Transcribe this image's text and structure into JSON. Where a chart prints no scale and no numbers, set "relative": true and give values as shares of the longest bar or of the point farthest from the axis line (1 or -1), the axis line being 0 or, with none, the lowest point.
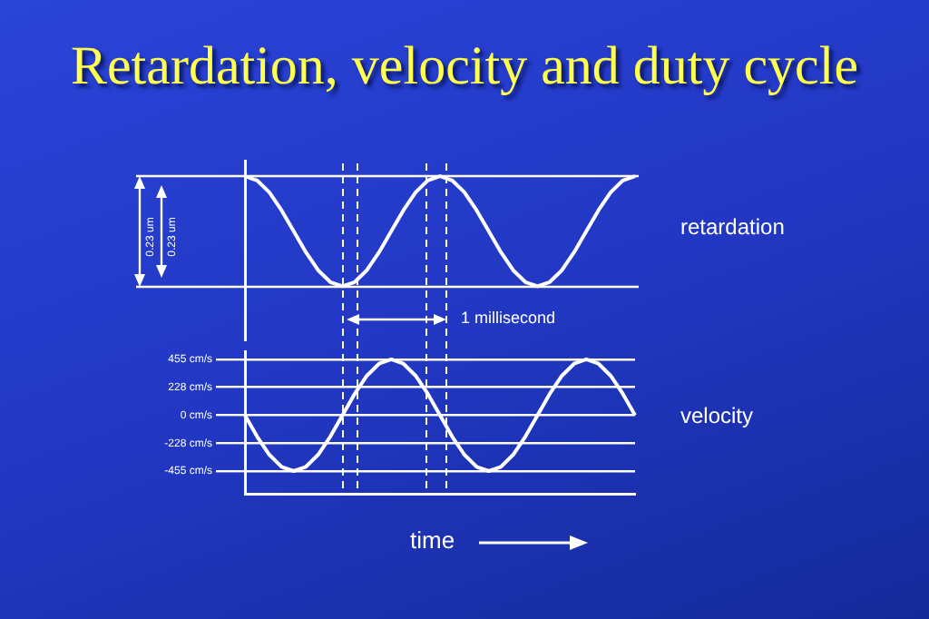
{
  "chart_data": [
    {
      "type": "line",
      "title": "Retardation, velocity and duty cycle",
      "relative": true,
      "tick_labels": false,
      "categories": [
        null,
        null,
        null,
        null,
        null,
        null,
        null,
        null,
        null,
        null,
        null,
        null,
        null,
        null,
        null,
        null,
        null,
        null,
        null,
        null,
        null,
        null,
        null,
        null,
        null,
        null,
        null,
        null,
        null,
        null,
        null,
        null,
        null
      ],
      "series": [
        {
          "name": "retardation",
          "color": "#ffffff",
          "values": [
            1,
            0.962,
            0.854,
            0.691,
            0.5,
            0.309,
            0.146,
            0.038,
            0,
            0.038,
            0.146,
            0.309,
            0.5,
            0.691,
            0.854,
            0.962,
            1,
            0.962,
            0.854,
            0.691,
            0.5,
            0.309,
            0.146,
            0.038,
            0,
            0.038,
            0.146,
            0.309,
            0.5,
            0.691,
            0.854,
            0.962,
            1
          ]
        }
      ],
      "annotations": [
        "0.23 um",
        "0.23 um",
        "1 millisecond"
      ],
      "legend": false,
      "grid": false,
      "marker": "none"
    },
    {
      "type": "line",
      "xlabel": "time",
      "tick_labels": "y",
      "ylim": [
        -640,
        520
      ],
      "categories": [
        null,
        null,
        null,
        null,
        null,
        null,
        null,
        null,
        null,
        null,
        null,
        null,
        null,
        null,
        null,
        null,
        null,
        null,
        null,
        null,
        null,
        null,
        null,
        null,
        null,
        null,
        null,
        null,
        null,
        null,
        null,
        null,
        null
      ],
      "yticks": [
        {
          "value": 455,
          "label": "455 cm/s"
        },
        {
          "value": 228,
          "label": "228 cm/s"
        },
        {
          "value": 0,
          "label": "0 cm/s"
        },
        {
          "value": -228,
          "label": "-228 cm/s"
        },
        {
          "value": -455,
          "label": "-455 cm/s"
        }
      ],
      "series": [
        {
          "name": "velocity",
          "color": "#ffffff",
          "values": [
            0,
            -174,
            -322,
            -420,
            -455,
            -420,
            -322,
            -174,
            0,
            174,
            322,
            420,
            455,
            420,
            322,
            174,
            0,
            -174,
            -322,
            -420,
            -455,
            -420,
            -322,
            -174,
            0,
            174,
            322,
            420,
            455,
            420,
            322,
            174,
            0
          ]
        }
      ],
      "legend": false,
      "grid": "y",
      "marker": "none"
    }
  ]
}
